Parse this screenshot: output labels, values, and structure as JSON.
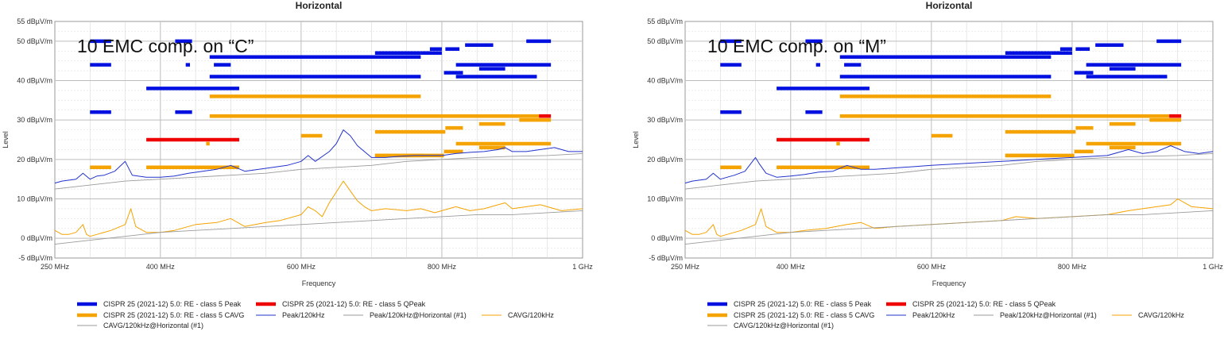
{
  "colors": {
    "peak_limit": "#0010e0",
    "qpeak_limit": "#ee0000",
    "cavg_limit": "#f5a300",
    "peak_trace": "#2233cc",
    "ref_trace": "#9a9a9a",
    "cavg_trace": "#f5a300",
    "grid": "#d8d8d8",
    "grid_major": "#bdbdbd"
  },
  "chart_data": [
    {
      "type": "line",
      "title": "Horizontal",
      "annotation": "10 EMC comp. on “C”",
      "xlabel": "Frequency",
      "ylabel": "Level",
      "xlim": [
        250,
        1000
      ],
      "ylim": [
        -5,
        55
      ],
      "x_ticks": [
        {
          "v": 250,
          "label": "250 MHz"
        },
        {
          "v": 400,
          "label": "400 MHz"
        },
        {
          "v": 600,
          "label": "600 MHz"
        },
        {
          "v": 800,
          "label": "800 MHz"
        },
        {
          "v": 1000,
          "label": "1 GHz"
        }
      ],
      "y_ticks": [
        {
          "v": 55,
          "label": "55 dBµV/m"
        },
        {
          "v": 50,
          "label": "50 dBµV/m"
        },
        {
          "v": 40,
          "label": "40 dBµV/m"
        },
        {
          "v": 30,
          "label": "30 dBµV/m"
        },
        {
          "v": 20,
          "label": "20 dBµV/m"
        },
        {
          "v": 10,
          "label": "10 dBµV/m"
        },
        {
          "v": 0,
          "label": "0 dBµV/m"
        },
        {
          "v": -5,
          "label": "-5 dBµV/m"
        }
      ],
      "limit_segments": {
        "peak": [
          [
            300,
            330,
            50.0
          ],
          [
            421,
            445,
            50.0
          ],
          [
            300,
            330,
            44.0
          ],
          [
            436,
            442,
            44.0
          ],
          [
            476,
            500,
            44.0
          ],
          [
            300,
            330,
            32.0
          ],
          [
            421,
            445,
            32.0
          ],
          [
            380,
            512,
            38.0
          ],
          [
            470,
            770,
            41.0
          ],
          [
            470,
            770,
            46.0
          ],
          [
            705,
            770,
            47.0
          ],
          [
            770,
            800,
            47.0
          ],
          [
            805,
            825,
            48.0
          ],
          [
            833,
            873,
            49.0
          ],
          [
            783,
            800,
            48.0
          ],
          [
            803,
            830,
            42.0
          ],
          [
            820,
            955,
            44.0
          ],
          [
            853,
            890,
            43.0
          ],
          [
            820,
            935,
            41.0
          ],
          [
            920,
            955,
            50.0
          ]
        ],
        "qpeak": [
          [
            380,
            512,
            25.0
          ],
          [
            938,
            955,
            31.0
          ]
        ],
        "cavg": [
          [
            300,
            330,
            18.0
          ],
          [
            380,
            512,
            18.0
          ],
          [
            465,
            470,
            24.0
          ],
          [
            470,
            770,
            36.0
          ],
          [
            470,
            938,
            31.0
          ],
          [
            910,
            955,
            30.0
          ],
          [
            600,
            630,
            26.0
          ],
          [
            705,
            805,
            27.0
          ],
          [
            805,
            830,
            28.0
          ],
          [
            853,
            890,
            29.0
          ],
          [
            705,
            803,
            21.0
          ],
          [
            803,
            830,
            22.0
          ],
          [
            820,
            955,
            24.0
          ],
          [
            853,
            890,
            23.0
          ],
          [
            705,
            775,
            21.0
          ]
        ]
      },
      "series": [
        {
          "name": "Peak/120kHz",
          "kind": "peak",
          "values_x": [
            250,
            260,
            280,
            290,
            300,
            310,
            320,
            335,
            350,
            360,
            380,
            400,
            420,
            440,
            460,
            480,
            500,
            520,
            540,
            560,
            580,
            600,
            610,
            620,
            640,
            650,
            660,
            670,
            680,
            690,
            700,
            720,
            740,
            760,
            780,
            800,
            820,
            840,
            860,
            880,
            890,
            900,
            920,
            940,
            960,
            980,
            1000
          ],
          "values_y": [
            14.0,
            14.5,
            15.0,
            16.5,
            15.0,
            15.8,
            16.0,
            17.0,
            19.5,
            16.0,
            15.5,
            15.5,
            15.8,
            16.5,
            17.0,
            17.5,
            18.5,
            17.0,
            17.5,
            18.0,
            18.5,
            19.5,
            21.0,
            19.5,
            22.0,
            24.0,
            27.5,
            26.0,
            23.5,
            22.0,
            20.5,
            20.5,
            20.8,
            21.0,
            21.0,
            21.0,
            21.5,
            21.8,
            22.0,
            22.5,
            23.0,
            22.0,
            22.0,
            22.5,
            23.0,
            22.0,
            22.0
          ]
        },
        {
          "name": "Peak/120kHz@Horizontal (#1)",
          "kind": "ref",
          "values_x": [
            250,
            300,
            350,
            400,
            450,
            500,
            550,
            600,
            650,
            700,
            750,
            800,
            850,
            900,
            950,
            1000
          ],
          "values_y": [
            12.5,
            13.5,
            14.5,
            15.0,
            15.5,
            16.0,
            16.5,
            17.5,
            18.0,
            18.5,
            19.5,
            20.0,
            20.5,
            20.8,
            21.0,
            21.5
          ]
        },
        {
          "name": "CAVG/120kHz",
          "kind": "cavg",
          "values_x": [
            250,
            260,
            270,
            280,
            290,
            295,
            300,
            310,
            330,
            350,
            358,
            365,
            380,
            400,
            420,
            450,
            480,
            500,
            520,
            550,
            570,
            600,
            610,
            620,
            630,
            640,
            660,
            670,
            680,
            690,
            700,
            720,
            750,
            770,
            790,
            800,
            820,
            840,
            860,
            880,
            890,
            900,
            920,
            940,
            950,
            970,
            1000
          ],
          "values_y": [
            2.0,
            1.0,
            1.0,
            1.5,
            3.5,
            1.0,
            0.5,
            1.0,
            2.0,
            3.5,
            7.5,
            3.0,
            1.5,
            1.5,
            2.0,
            3.5,
            4.0,
            5.0,
            3.0,
            4.0,
            4.5,
            6.0,
            8.0,
            7.0,
            5.5,
            9.0,
            14.5,
            12.0,
            9.5,
            8.0,
            7.0,
            7.5,
            7.0,
            7.5,
            6.5,
            7.0,
            8.0,
            7.0,
            7.5,
            8.5,
            9.0,
            7.5,
            8.0,
            8.5,
            8.0,
            7.0,
            7.5
          ]
        },
        {
          "name": "CAVG/120kHz@Horizontal (#1)",
          "kind": "ref",
          "values_x": [
            250,
            300,
            350,
            400,
            450,
            500,
            550,
            600,
            650,
            700,
            750,
            800,
            850,
            900,
            950,
            1000
          ],
          "values_y": [
            -1.5,
            -0.5,
            0.5,
            1.5,
            2.0,
            2.5,
            3.0,
            3.5,
            4.0,
            4.5,
            5.0,
            5.5,
            6.0,
            6.0,
            6.5,
            7.0
          ]
        }
      ],
      "legend": [
        {
          "label": "CISPR 25 (2021-12) 5.0: RE - class 5 Peak",
          "kind": "peak_limit"
        },
        {
          "label": "CISPR 25 (2021-12) 5.0: RE - class 5 QPeak",
          "kind": "qpeak_limit"
        },
        {
          "label": "CISPR 25 (2021-12) 5.0: RE - class 5 CAVG",
          "kind": "cavg_limit"
        },
        {
          "label": "Peak/120kHz",
          "kind": "peak_trace"
        },
        {
          "label": "Peak/120kHz@Horizontal (#1)",
          "kind": "ref_trace"
        },
        {
          "label": "CAVG/120kHz",
          "kind": "cavg_trace"
        },
        {
          "label": "CAVG/120kHz@Horizontal (#1)",
          "kind": "ref_trace"
        }
      ]
    },
    {
      "type": "line",
      "title": "Horizontal",
      "annotation": "10 EMC comp. on “M”",
      "xlabel": "Frequency",
      "ylabel": "Level",
      "xlim": [
        250,
        1000
      ],
      "ylim": [
        -5,
        55
      ],
      "x_ticks": [
        {
          "v": 250,
          "label": "250 MHz"
        },
        {
          "v": 400,
          "label": "400 MHz"
        },
        {
          "v": 600,
          "label": "600 MHz"
        },
        {
          "v": 800,
          "label": "800 MHz"
        },
        {
          "v": 1000,
          "label": "1 GHz"
        }
      ],
      "y_ticks": [
        {
          "v": 55,
          "label": "55 dBµV/m"
        },
        {
          "v": 50,
          "label": "50 dBµV/m"
        },
        {
          "v": 40,
          "label": "40 dBµV/m"
        },
        {
          "v": 30,
          "label": "30 dBµV/m"
        },
        {
          "v": 20,
          "label": "20 dBµV/m"
        },
        {
          "v": 10,
          "label": "10 dBµV/m"
        },
        {
          "v": 0,
          "label": "0 dBµV/m"
        },
        {
          "v": -5,
          "label": "-5 dBµV/m"
        }
      ],
      "limit_segments": {
        "peak": [
          [
            300,
            330,
            50.0
          ],
          [
            421,
            445,
            50.0
          ],
          [
            300,
            330,
            44.0
          ],
          [
            436,
            442,
            44.0
          ],
          [
            476,
            500,
            44.0
          ],
          [
            300,
            330,
            32.0
          ],
          [
            421,
            445,
            32.0
          ],
          [
            380,
            512,
            38.0
          ],
          [
            470,
            770,
            41.0
          ],
          [
            470,
            770,
            46.0
          ],
          [
            705,
            770,
            47.0
          ],
          [
            770,
            800,
            47.0
          ],
          [
            805,
            825,
            48.0
          ],
          [
            833,
            873,
            49.0
          ],
          [
            783,
            800,
            48.0
          ],
          [
            803,
            830,
            42.0
          ],
          [
            820,
            955,
            44.0
          ],
          [
            853,
            890,
            43.0
          ],
          [
            820,
            935,
            41.0
          ],
          [
            920,
            955,
            50.0
          ]
        ],
        "qpeak": [
          [
            380,
            512,
            25.0
          ],
          [
            938,
            955,
            31.0
          ]
        ],
        "cavg": [
          [
            300,
            330,
            18.0
          ],
          [
            380,
            512,
            18.0
          ],
          [
            465,
            470,
            24.0
          ],
          [
            470,
            770,
            36.0
          ],
          [
            470,
            938,
            31.0
          ],
          [
            910,
            955,
            30.0
          ],
          [
            600,
            630,
            26.0
          ],
          [
            705,
            805,
            27.0
          ],
          [
            805,
            830,
            28.0
          ],
          [
            853,
            890,
            29.0
          ],
          [
            705,
            803,
            21.0
          ],
          [
            803,
            830,
            22.0
          ],
          [
            820,
            955,
            24.0
          ],
          [
            853,
            890,
            23.0
          ],
          [
            705,
            775,
            21.0
          ]
        ]
      },
      "series": [
        {
          "name": "Peak/120kHz",
          "kind": "peak",
          "values_x": [
            250,
            260,
            280,
            290,
            300,
            310,
            320,
            335,
            350,
            355,
            365,
            380,
            400,
            420,
            440,
            460,
            480,
            500,
            520,
            560,
            600,
            650,
            700,
            750,
            800,
            850,
            880,
            900,
            920,
            940,
            960,
            980,
            1000
          ],
          "values_y": [
            14.0,
            14.5,
            15.0,
            16.5,
            15.0,
            15.5,
            16.0,
            17.0,
            20.5,
            19.0,
            16.5,
            15.5,
            15.8,
            16.2,
            16.8,
            17.0,
            18.5,
            17.5,
            17.5,
            18.0,
            18.5,
            19.0,
            19.5,
            20.0,
            20.5,
            21.0,
            22.5,
            21.5,
            22.0,
            23.5,
            22.0,
            21.5,
            22.0
          ]
        },
        {
          "name": "Peak/120kHz@Horizontal (#1)",
          "kind": "ref",
          "values_x": [
            250,
            300,
            350,
            400,
            450,
            500,
            550,
            600,
            650,
            700,
            750,
            800,
            850,
            900,
            950,
            1000
          ],
          "values_y": [
            12.5,
            13.5,
            14.5,
            15.0,
            15.5,
            16.0,
            16.5,
            17.5,
            18.0,
            18.5,
            19.5,
            20.0,
            20.5,
            20.8,
            21.0,
            21.5
          ]
        },
        {
          "name": "CAVG/120kHz",
          "kind": "cavg",
          "values_x": [
            250,
            260,
            270,
            280,
            290,
            295,
            300,
            310,
            330,
            350,
            358,
            365,
            380,
            400,
            420,
            450,
            480,
            500,
            520,
            550,
            570,
            600,
            650,
            700,
            720,
            750,
            800,
            850,
            880,
            900,
            920,
            940,
            950,
            970,
            1000
          ],
          "values_y": [
            2.0,
            1.0,
            1.0,
            1.5,
            3.5,
            1.0,
            0.5,
            1.0,
            2.0,
            3.5,
            7.5,
            3.0,
            1.5,
            1.5,
            2.0,
            2.5,
            3.5,
            4.0,
            2.5,
            3.0,
            3.2,
            3.5,
            4.0,
            4.5,
            5.5,
            5.0,
            5.5,
            6.0,
            7.0,
            7.5,
            8.0,
            8.5,
            10.0,
            8.0,
            7.5
          ]
        },
        {
          "name": "CAVG/120kHz@Horizontal (#1)",
          "kind": "ref",
          "values_x": [
            250,
            300,
            350,
            400,
            450,
            500,
            550,
            600,
            650,
            700,
            750,
            800,
            850,
            900,
            950,
            1000
          ],
          "values_y": [
            -1.5,
            -0.5,
            0.5,
            1.5,
            2.0,
            2.5,
            3.0,
            3.5,
            4.0,
            4.5,
            5.0,
            5.5,
            6.0,
            6.0,
            6.5,
            7.0
          ]
        }
      ],
      "legend": [
        {
          "label": "CISPR 25 (2021-12) 5.0: RE - class 5 Peak",
          "kind": "peak_limit"
        },
        {
          "label": "CISPR 25 (2021-12) 5.0: RE - class 5 QPeak",
          "kind": "qpeak_limit"
        },
        {
          "label": "CISPR 25 (2021-12) 5.0: RE - class 5 CAVG",
          "kind": "cavg_limit"
        },
        {
          "label": "Peak/120kHz",
          "kind": "peak_trace"
        },
        {
          "label": "Peak/120kHz@Horizontal (#1)",
          "kind": "ref_trace"
        },
        {
          "label": "CAVG/120kHz",
          "kind": "cavg_trace"
        },
        {
          "label": "CAVG/120kHz@Horizontal (#1)",
          "kind": "ref_trace"
        }
      ]
    }
  ]
}
